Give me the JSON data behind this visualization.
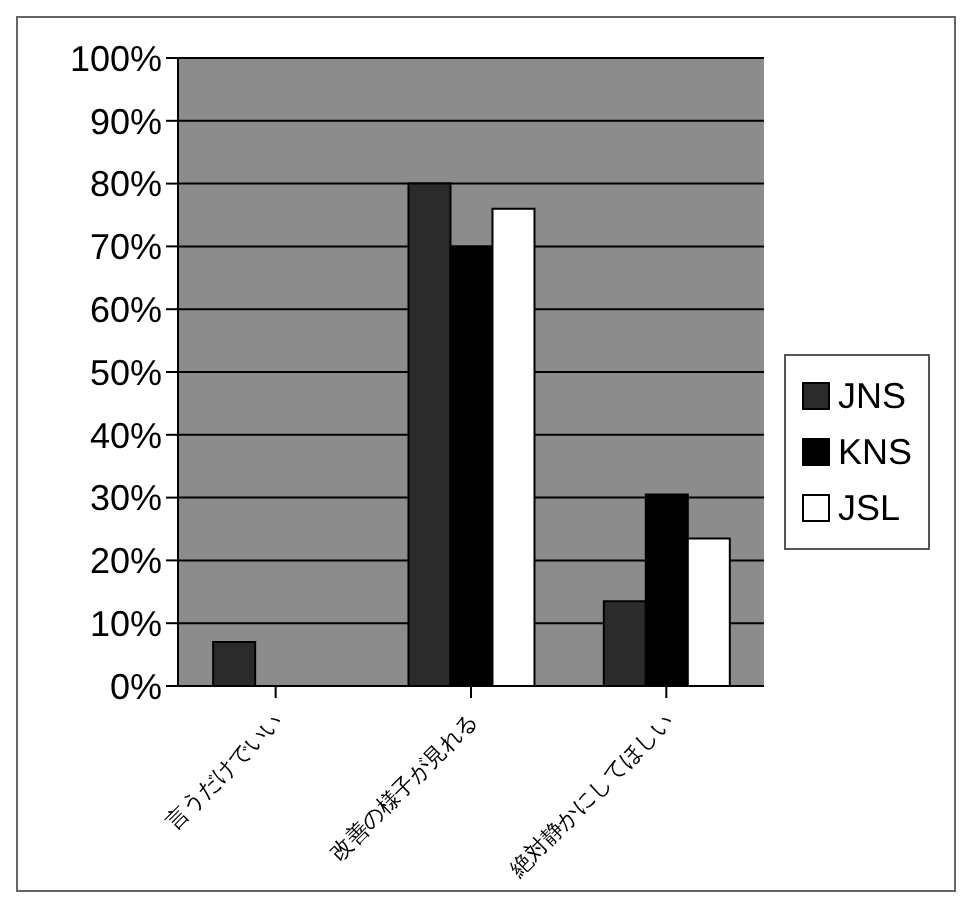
{
  "chart_data": {
    "type": "bar",
    "categories": [
      "言うだけでいい",
      "改善の様子が見れる",
      "絶対静かにしてほしい"
    ],
    "series": [
      {
        "name": "JNS",
        "color": "#2b2b2b",
        "values": [
          7,
          80,
          13.5
        ]
      },
      {
        "name": "KNS",
        "color": "#000000",
        "values": [
          0,
          70,
          30.5
        ]
      },
      {
        "name": "JSL",
        "color": "#ffffff",
        "values": [
          0,
          76,
          23.5
        ]
      }
    ],
    "ylim": [
      0,
      100
    ],
    "yticks": [
      {
        "value": 0,
        "label": "0%"
      },
      {
        "value": 10,
        "label": "10%"
      },
      {
        "value": 20,
        "label": "20%"
      },
      {
        "value": 30,
        "label": "30%"
      },
      {
        "value": 40,
        "label": "40%"
      },
      {
        "value": 50,
        "label": "50%"
      },
      {
        "value": 60,
        "label": "60%"
      },
      {
        "value": 70,
        "label": "70%"
      },
      {
        "value": 80,
        "label": "80%"
      },
      {
        "value": 90,
        "label": "90%"
      },
      {
        "value": 100,
        "label": "100%"
      }
    ],
    "grid": "y",
    "legend": "right"
  }
}
